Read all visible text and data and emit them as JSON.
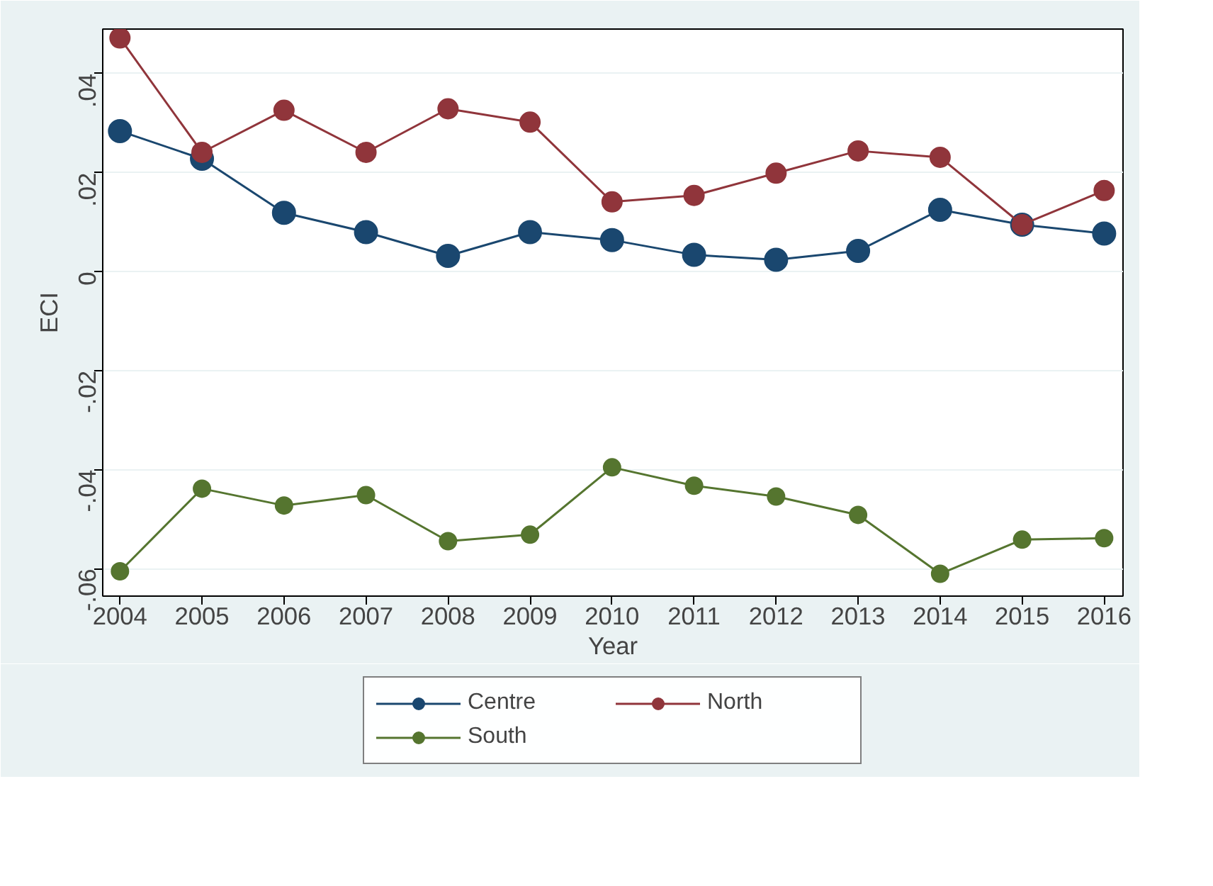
{
  "chart_data": {
    "type": "line",
    "xlabel": "Year",
    "ylabel": "ECI",
    "x": [
      2004,
      2005,
      2006,
      2007,
      2008,
      2009,
      2010,
      2011,
      2012,
      2013,
      2014,
      2015,
      2016
    ],
    "series": [
      {
        "name": "Centre",
        "color": "#1a476f",
        "values": [
          0.0284,
          0.0228,
          0.0119,
          0.008,
          0.0032,
          0.008,
          0.0064,
          0.0034,
          0.0024,
          0.0042,
          0.0125,
          0.0095,
          0.0077
        ]
      },
      {
        "name": "North",
        "color": "#90353b",
        "values": [
          0.0472,
          0.0241,
          0.0326,
          0.0241,
          0.0329,
          0.0302,
          0.0141,
          0.0154,
          0.0199,
          0.0244,
          0.0231,
          0.0095,
          0.0164
        ]
      },
      {
        "name": "South",
        "color": "#55752f",
        "values": [
          -0.0605,
          -0.0438,
          -0.0472,
          -0.0451,
          -0.0544,
          -0.0531,
          -0.0395,
          -0.0432,
          -0.0454,
          -0.0491,
          -0.061,
          -0.0541,
          -0.0538
        ]
      }
    ],
    "xlim": [
      2003.79,
      2016.23
    ],
    "xticks": [
      2004,
      2005,
      2006,
      2007,
      2008,
      2009,
      2010,
      2011,
      2012,
      2013,
      2014,
      2015,
      2016
    ],
    "ylim": [
      -0.0655,
      0.049
    ],
    "yticks": [
      {
        "value": -0.06,
        "label": "-.06"
      },
      {
        "value": -0.04,
        "label": "-.04"
      },
      {
        "value": -0.02,
        "label": "-.02"
      },
      {
        "value": 0,
        "label": "0"
      },
      {
        "value": 0.02,
        "label": ".02"
      },
      {
        "value": 0.04,
        "label": ".04"
      }
    ],
    "grid": "y",
    "legend": "bottom",
    "marker": "circle",
    "line_style": "solid"
  }
}
